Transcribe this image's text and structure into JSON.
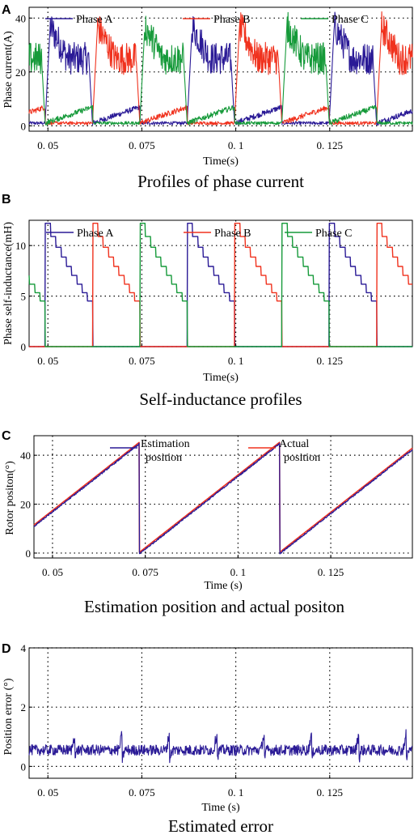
{
  "panels": [
    {
      "letter": "A",
      "caption": "Profiles of phase current",
      "chart_data": {
        "type": "line",
        "title": "",
        "xlabel": "Time(s)",
        "ylabel": "Phase current(A)",
        "xlim": [
          0.045,
          0.147
        ],
        "ylim": [
          -2,
          44
        ],
        "xticks": [
          0.05,
          0.075,
          0.1,
          0.125
        ],
        "xtick_labels": [
          "0. 05",
          "0. 075",
          "0. 1",
          "0. 125"
        ],
        "yticks": [
          0,
          20,
          40
        ],
        "ytick_labels": [
          "0",
          "20",
          "40"
        ],
        "grid": true,
        "legend": "top",
        "series": [
          {
            "name": "Phase A",
            "color": "#2a1a96"
          },
          {
            "name": "Phase B",
            "color": "#f0321e"
          },
          {
            "name": "Phase C",
            "color": "#169a3a"
          }
        ],
        "pattern": {
          "period": 0.0378,
          "phase_start_offsets": {
            "Phase A": 0.0115,
            "Phase B": 0.0241,
            "Phase C": -0.0011
          },
          "conduction_width": 0.0126,
          "peak": 37,
          "plateau": 25,
          "tail_level": 6
        }
      }
    },
    {
      "letter": "B",
      "caption": "Self-inductance profiles",
      "chart_data": {
        "type": "line",
        "title": "",
        "xlabel": "Time(s)",
        "ylabel": "Phase self-inductance(mH)",
        "xlim": [
          0.045,
          0.147
        ],
        "ylim": [
          0,
          12.5
        ],
        "xticks": [
          0.05,
          0.075,
          0.1,
          0.125
        ],
        "xtick_labels": [
          "0. 05",
          "0. 075",
          "0. 1",
          "0. 125"
        ],
        "yticks": [
          0,
          5,
          10
        ],
        "ytick_labels": [
          "0",
          "5",
          "10"
        ],
        "grid": true,
        "legend": "top",
        "series": [
          {
            "name": "Phase A",
            "color": "#2a1a96"
          },
          {
            "name": "Phase B",
            "color": "#f0321e"
          },
          {
            "name": "Phase C",
            "color": "#169a3a"
          }
        ],
        "pattern": {
          "period": 0.0378,
          "phase_start_offsets": {
            "Phase A": 0.0115,
            "Phase B": 0.0241,
            "Phase C": -0.0011
          },
          "conduction_width": 0.0126,
          "peak": 12.2,
          "end_level": 3.7
        }
      }
    },
    {
      "letter": "C",
      "caption": "Estimation position and actual positon",
      "chart_data": {
        "type": "line",
        "title": "",
        "xlabel": "Time  (s)",
        "ylabel": "Rotor positon(°)",
        "xlim": [
          0.045,
          0.147
        ],
        "ylim": [
          -2,
          48
        ],
        "xticks": [
          0.05,
          0.075,
          0.1,
          0.125
        ],
        "xtick_labels": [
          "0. 05",
          "0. 075",
          "0. 1",
          "0. 125"
        ],
        "yticks": [
          0,
          20,
          40
        ],
        "ytick_labels": [
          "0",
          "20",
          "40"
        ],
        "grid": true,
        "legend": "top-right",
        "series": [
          {
            "name": "Estimation position",
            "legend_lines": [
              "Estimation",
              "position"
            ],
            "color": "#2a1a96"
          },
          {
            "name": "Actual position",
            "legend_lines": [
              "Actual",
              "position"
            ],
            "color": "#f0321e"
          }
        ],
        "pattern": {
          "sawtooth_resets": [
            0.0734,
            0.1112
          ],
          "period": 0.0378,
          "min": 0,
          "max": 45
        }
      }
    },
    {
      "letter": "D",
      "caption": "Estimated error",
      "chart_data": {
        "type": "line",
        "title": "",
        "xlabel": "Time  (s)",
        "ylabel": "Position error  (°)",
        "xlim": [
          0.045,
          0.147
        ],
        "ylim": [
          -0.4,
          4
        ],
        "xticks": [
          0.05,
          0.075,
          0.1,
          0.125
        ],
        "xtick_labels": [
          "0. 05",
          "0. 075",
          "0. 1",
          "0. 125"
        ],
        "yticks": [
          0,
          2,
          4
        ],
        "ytick_labels": [
          "0",
          "2",
          "4"
        ],
        "grid": true,
        "series": [
          {
            "name": "Position error",
            "color": "#2a1a96"
          }
        ],
        "pattern": {
          "mean": 0.55,
          "noise_amplitude": 0.18,
          "spike_times": [
            0.0572,
            0.0698,
            0.0824,
            0.095,
            0.1076,
            0.1202,
            0.1328,
            0.1454
          ],
          "spike_height": 0.6
        }
      }
    }
  ]
}
